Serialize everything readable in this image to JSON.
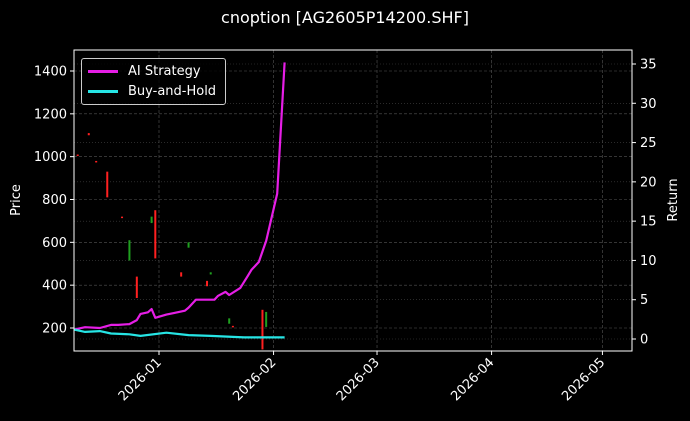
{
  "title": "cnoption [AG2605P14200.SHF]",
  "legend": {
    "items": [
      {
        "label": "AI Strategy",
        "color": "#e61ee6"
      },
      {
        "label": "Buy-and-Hold",
        "color": "#26e5e5"
      }
    ]
  },
  "axes": {
    "left_label": "Price",
    "right_label": "Return",
    "left_ticks": [
      "200",
      "400",
      "600",
      "800",
      "1000",
      "1200",
      "1400"
    ],
    "right_ticks": [
      "0",
      "5",
      "10",
      "15",
      "20",
      "25",
      "30",
      "35"
    ],
    "x_ticks": [
      "2026-01",
      "2026-02",
      "2026-03",
      "2026-04",
      "2026-05"
    ]
  },
  "chart_data": {
    "type": "line",
    "title": "cnoption [AG2605P14200.SHF]",
    "xlabel": "",
    "ylabel": "Price",
    "y2label": "Return",
    "ylim": [
      100,
      1490
    ],
    "y2lim": [
      -1.5,
      36.5
    ],
    "xlim": [
      "2025-12-09",
      "2026-05-09"
    ],
    "grid": true,
    "legend_position": "upper left",
    "x_tick_labels": [
      "2026-01",
      "2026-02",
      "2026-03",
      "2026-04",
      "2026-05"
    ],
    "series": [
      {
        "name": "AI Strategy",
        "axis": "right",
        "color": "#e61ee6",
        "x": [
          "2025-12-09",
          "2025-12-12",
          "2025-12-16",
          "2025-12-19",
          "2025-12-21",
          "2025-12-24",
          "2025-12-26",
          "2025-12-27",
          "2025-12-29",
          "2025-12-30",
          "2025-12-31",
          "2026-01-03",
          "2026-01-05",
          "2026-01-08",
          "2026-01-09",
          "2026-01-11",
          "2026-01-16",
          "2026-01-17",
          "2026-01-19",
          "2026-01-20",
          "2026-01-23",
          "2026-01-25",
          "2026-01-26",
          "2026-01-28",
          "2026-01-30",
          "2026-02-02",
          "2026-02-04"
        ],
        "values": [
          1.2,
          1.5,
          1.4,
          1.8,
          1.8,
          1.9,
          2.4,
          3.2,
          3.4,
          3.8,
          2.7,
          3.1,
          3.3,
          3.6,
          4.0,
          5.0,
          5.0,
          5.5,
          6.0,
          5.6,
          6.5,
          8.0,
          8.8,
          9.8,
          12.5,
          18.5,
          35.2
        ]
      },
      {
        "name": "Buy-and-Hold",
        "axis": "right",
        "color": "#26e5e5",
        "x": [
          "2025-12-09",
          "2025-12-12",
          "2025-12-16",
          "2025-12-19",
          "2025-12-24",
          "2025-12-27",
          "2026-01-03",
          "2026-01-09",
          "2026-01-15",
          "2026-01-24",
          "2026-02-04"
        ],
        "values": [
          1.2,
          0.9,
          1.0,
          0.7,
          0.6,
          0.4,
          0.8,
          0.5,
          0.4,
          0.2,
          0.2
        ]
      }
    ],
    "candles": {
      "axis": "left",
      "up_color": "#1fa01f",
      "down_color": "#ff2020",
      "note": "sparse thin OHLC bars, approximate high/low prices",
      "items": [
        {
          "x": "2025-12-10",
          "low": 1005,
          "high": 1010,
          "dir": "down"
        },
        {
          "x": "2025-12-13",
          "low": 1100,
          "high": 1110,
          "dir": "down"
        },
        {
          "x": "2025-12-15",
          "low": 975,
          "high": 980,
          "dir": "down"
        },
        {
          "x": "2025-12-18",
          "low": 810,
          "high": 930,
          "dir": "down"
        },
        {
          "x": "2025-12-22",
          "low": 715,
          "high": 720,
          "dir": "down"
        },
        {
          "x": "2025-12-24",
          "low": 515,
          "high": 610,
          "dir": "up"
        },
        {
          "x": "2025-12-26",
          "low": 340,
          "high": 440,
          "dir": "down"
        },
        {
          "x": "2025-12-30",
          "low": 690,
          "high": 720,
          "dir": "up"
        },
        {
          "x": "2025-12-31",
          "low": 525,
          "high": 750,
          "dir": "down"
        },
        {
          "x": "2026-01-07",
          "low": 440,
          "high": 460,
          "dir": "down"
        },
        {
          "x": "2026-01-09",
          "low": 575,
          "high": 600,
          "dir": "up"
        },
        {
          "x": "2026-01-14",
          "low": 395,
          "high": 420,
          "dir": "down"
        },
        {
          "x": "2026-01-15",
          "low": 450,
          "high": 460,
          "dir": "up"
        },
        {
          "x": "2026-01-20",
          "low": 220,
          "high": 245,
          "dir": "up"
        },
        {
          "x": "2026-01-21",
          "low": 205,
          "high": 210,
          "dir": "down"
        },
        {
          "x": "2026-01-29",
          "low": 100,
          "high": 285,
          "dir": "down"
        },
        {
          "x": "2026-01-30",
          "low": 205,
          "high": 275,
          "dir": "up"
        }
      ]
    }
  }
}
